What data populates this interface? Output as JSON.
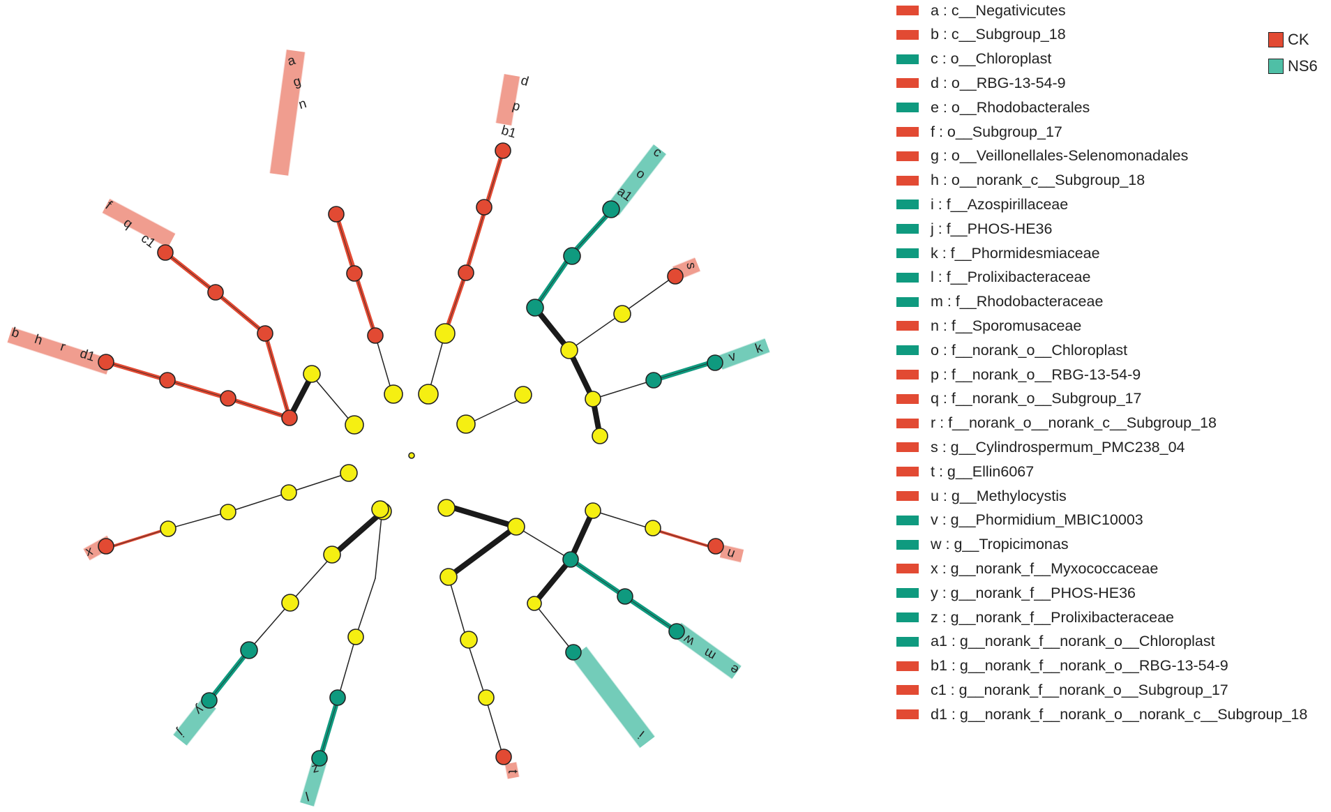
{
  "colors": {
    "CK": "#e24a33",
    "NS6": "#0f9a7f",
    "node_neutral": "#f5ef12"
  },
  "groups": [
    {
      "name": "CK",
      "color": "#e24a33"
    },
    {
      "name": "NS6",
      "color": "#4fbfa6"
    }
  ],
  "taxa": [
    {
      "key": "a",
      "label": "a : c__Negativicutes",
      "group": "CK"
    },
    {
      "key": "b",
      "label": "b : c__Subgroup_18",
      "group": "CK"
    },
    {
      "key": "c",
      "label": "c : o__Chloroplast",
      "group": "NS6"
    },
    {
      "key": "d",
      "label": "d : o__RBG-13-54-9",
      "group": "CK"
    },
    {
      "key": "e",
      "label": "e : o__Rhodobacterales",
      "group": "NS6"
    },
    {
      "key": "f",
      "label": "f : o__Subgroup_17",
      "group": "CK"
    },
    {
      "key": "g",
      "label": "g : o__Veillonellales-Selenomonadales",
      "group": "CK"
    },
    {
      "key": "h",
      "label": "h : o__norank_c__Subgroup_18",
      "group": "CK"
    },
    {
      "key": "i",
      "label": "i : f__Azospirillaceae",
      "group": "NS6"
    },
    {
      "key": "j",
      "label": "j : f__PHOS-HE36",
      "group": "NS6"
    },
    {
      "key": "k",
      "label": "k : f__Phormidesmiaceae",
      "group": "NS6"
    },
    {
      "key": "l",
      "label": "l : f__Prolixibacteraceae",
      "group": "NS6"
    },
    {
      "key": "m",
      "label": "m : f__Rhodobacteraceae",
      "group": "NS6"
    },
    {
      "key": "n",
      "label": "n : f__Sporomusaceae",
      "group": "CK"
    },
    {
      "key": "o",
      "label": "o : f__norank_o__Chloroplast",
      "group": "NS6"
    },
    {
      "key": "p",
      "label": "p : f__norank_o__RBG-13-54-9",
      "group": "CK"
    },
    {
      "key": "q",
      "label": "q : f__norank_o__Subgroup_17",
      "group": "CK"
    },
    {
      "key": "r",
      "label": "r : f__norank_o__norank_c__Subgroup_18",
      "group": "CK"
    },
    {
      "key": "s",
      "label": "s : g__Cylindrospermum_PMC238_04",
      "group": "CK"
    },
    {
      "key": "t",
      "label": "t : g__Ellin6067",
      "group": "CK"
    },
    {
      "key": "u",
      "label": "u : g__Methylocystis",
      "group": "CK"
    },
    {
      "key": "v",
      "label": "v : g__Phormidium_MBIC10003",
      "group": "NS6"
    },
    {
      "key": "w",
      "label": "w : g__Tropicimonas",
      "group": "NS6"
    },
    {
      "key": "x",
      "label": "x : g__norank_f__Myxococcaceae",
      "group": "CK"
    },
    {
      "key": "y",
      "label": "y : g__norank_f__PHOS-HE36",
      "group": "NS6"
    },
    {
      "key": "z",
      "label": "z : g__norank_f__Prolixibacteraceae",
      "group": "NS6"
    },
    {
      "key": "a1",
      "label": "a1 : g__norank_f__norank_o__Chloroplast",
      "group": "NS6"
    },
    {
      "key": "b1",
      "label": "b1 : g__norank_f__norank_o__RBG-13-54-9",
      "group": "CK"
    },
    {
      "key": "c1",
      "label": "c1 : g__norank_f__norank_o__Subgroup_17",
      "group": "CK"
    },
    {
      "key": "d1",
      "label": "d1 : g__norank_f__norank_o__norank_c__Subgroup_18",
      "group": "CK"
    }
  ],
  "clade_labels": {
    "a": "a",
    "g": "g",
    "n": "n",
    "d": "d",
    "p": "p",
    "b1": "b1",
    "c": "c",
    "o": "o",
    "a1": "a1",
    "f": "f",
    "q": "q",
    "c1": "c1",
    "b": "b",
    "h": "h",
    "r": "r",
    "d1": "d1",
    "s": "s",
    "k": "k",
    "v": "v",
    "x": "x",
    "u": "u",
    "t": "t",
    "e": "e",
    "m": "m",
    "w": "w",
    "i": "i",
    "j": "j",
    "y": "y",
    "l": "l",
    "z": "z"
  }
}
